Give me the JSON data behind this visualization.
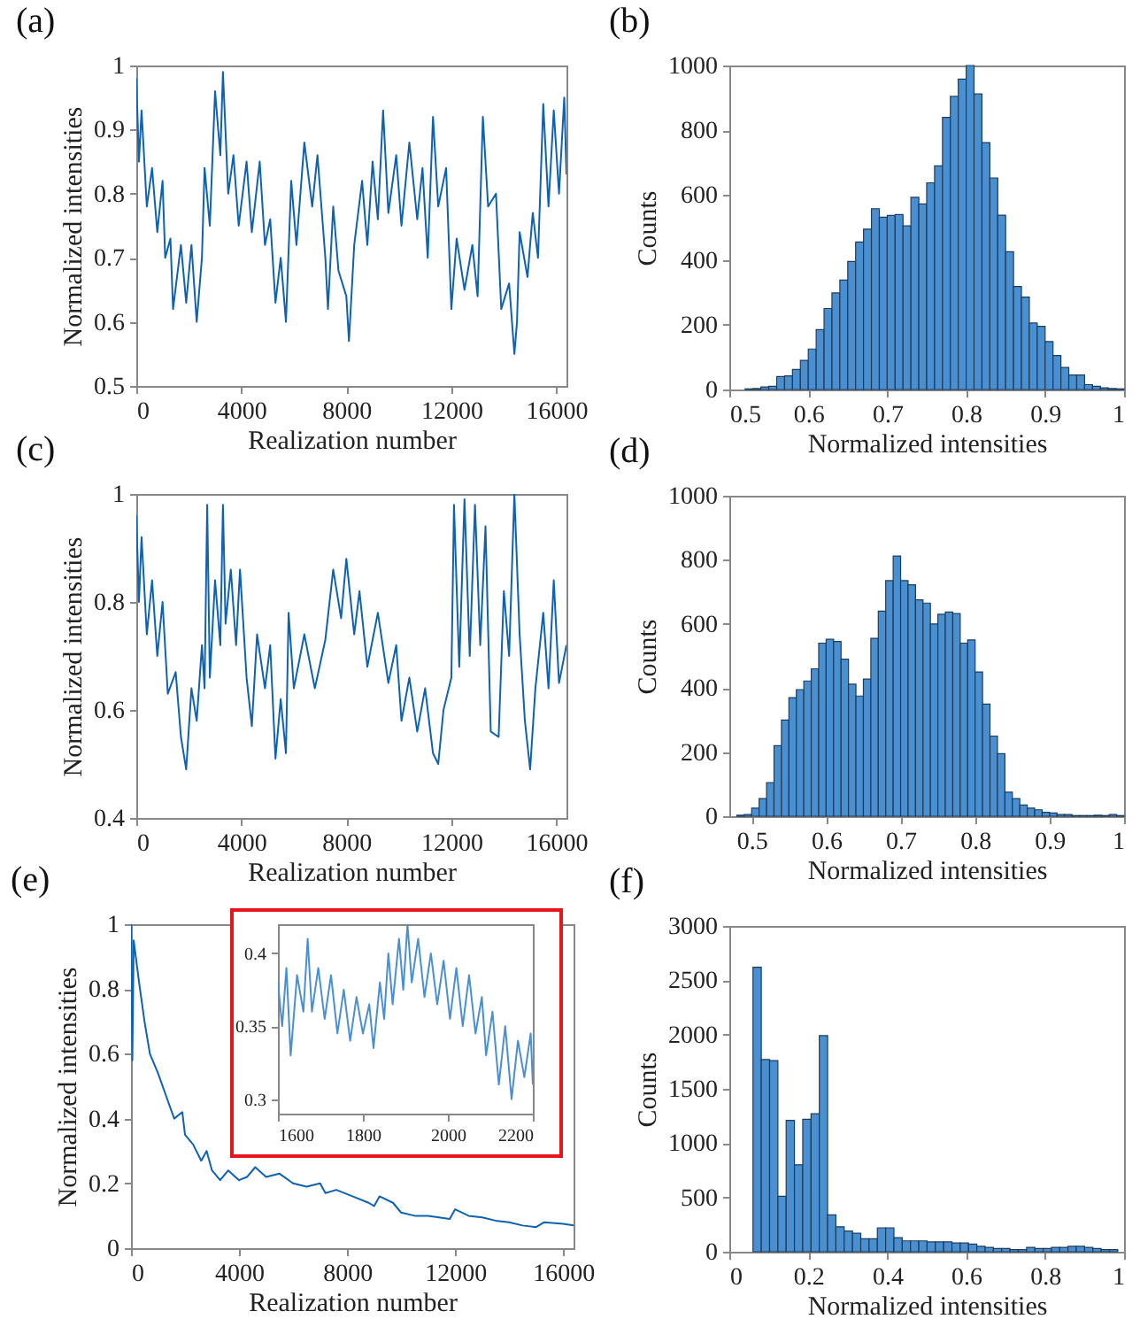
{
  "chart_data": [
    {
      "type": "line",
      "title": "(a)",
      "xlabel": "Realization number",
      "ylabel": "Normalized intensities",
      "color": "#0e62b0",
      "xlim": [
        0,
        16384
      ],
      "xticks": [
        0,
        4000,
        8000,
        12000,
        16000
      ],
      "ylim": [
        0.5,
        1
      ],
      "yticks": [
        0.5,
        0.6,
        0.7,
        0.8,
        0.9,
        1
      ],
      "x": [
        0,
        100,
        200,
        400,
        600,
        800,
        1000,
        1100,
        1300,
        1400,
        1700,
        1900,
        2100,
        2300,
        2500,
        2600,
        2800,
        3000,
        3200,
        3300,
        3500,
        3700,
        3900,
        4200,
        4400,
        4700,
        4900,
        5100,
        5300,
        5500,
        5700,
        5900,
        6100,
        6400,
        6700,
        6900,
        7200,
        7300,
        7500,
        7700,
        8000,
        8100,
        8300,
        8600,
        8800,
        9000,
        9200,
        9400,
        9600,
        9900,
        10100,
        10400,
        10700,
        10900,
        11100,
        11300,
        11500,
        11800,
        12000,
        12200,
        12500,
        12800,
        13000,
        13200,
        13400,
        13700,
        13900,
        14200,
        14400,
        14500,
        14600,
        14900,
        15100,
        15300,
        15500,
        15700,
        15900,
        16100,
        16300,
        16384
      ],
      "values": [
        0.98,
        0.85,
        0.93,
        0.78,
        0.84,
        0.74,
        0.82,
        0.7,
        0.73,
        0.62,
        0.72,
        0.63,
        0.72,
        0.6,
        0.7,
        0.84,
        0.75,
        0.96,
        0.86,
        0.99,
        0.8,
        0.86,
        0.75,
        0.85,
        0.74,
        0.85,
        0.72,
        0.76,
        0.63,
        0.7,
        0.6,
        0.82,
        0.72,
        0.88,
        0.78,
        0.86,
        0.7,
        0.62,
        0.78,
        0.68,
        0.64,
        0.57,
        0.72,
        0.82,
        0.72,
        0.85,
        0.76,
        0.93,
        0.77,
        0.86,
        0.75,
        0.88,
        0.76,
        0.84,
        0.7,
        0.92,
        0.78,
        0.84,
        0.62,
        0.73,
        0.65,
        0.72,
        0.64,
        0.92,
        0.78,
        0.8,
        0.62,
        0.66,
        0.55,
        0.6,
        0.74,
        0.67,
        0.77,
        0.7,
        0.94,
        0.78,
        0.93,
        0.8,
        0.95,
        0.83
      ]
    },
    {
      "type": "histogram",
      "title": "(b)",
      "xlabel": "Normalized intensities",
      "ylabel": "Counts",
      "color": "#4a90d0",
      "xlim": [
        0.5,
        1
      ],
      "xticks": [
        0.5,
        0.6,
        0.7,
        0.8,
        0.9,
        1
      ],
      "ylim": [
        0,
        1000
      ],
      "yticks": [
        0,
        200,
        400,
        600,
        800,
        1000
      ],
      "bins": [
        0.5,
        0.51,
        0.52,
        0.53,
        0.54,
        0.55,
        0.56,
        0.57,
        0.58,
        0.59,
        0.6,
        0.61,
        0.62,
        0.63,
        0.64,
        0.65,
        0.66,
        0.67,
        0.68,
        0.69,
        0.7,
        0.71,
        0.72,
        0.73,
        0.74,
        0.75,
        0.76,
        0.77,
        0.78,
        0.79,
        0.8,
        0.81,
        0.82,
        0.83,
        0.84,
        0.85,
        0.86,
        0.87,
        0.88,
        0.89,
        0.9,
        0.91,
        0.92,
        0.93,
        0.94,
        0.95,
        0.96,
        0.97,
        0.98,
        0.99,
        1
      ],
      "values": [
        null,
        null,
        2,
        3,
        8,
        10,
        40,
        42,
        62,
        90,
        125,
        185,
        250,
        298,
        338,
        395,
        455,
        495,
        558,
        532,
        537,
        540,
        505,
        593,
        573,
        638,
        690,
        840,
        905,
        958,
        1000,
        912,
        762,
        653,
        538,
        425,
        318,
        285,
        205,
        195,
        148,
        105,
        68,
        45,
        45,
        15,
        10,
        5,
        3,
        2
      ]
    },
    {
      "type": "line",
      "title": "(c)",
      "xlabel": "Realization number",
      "ylabel": "Normalized intensities",
      "color": "#0e62b0",
      "xlim": [
        0,
        16384
      ],
      "xticks": [
        0,
        4000,
        8000,
        12000,
        16000
      ],
      "ylim": [
        0.4,
        1
      ],
      "yticks": [
        0.4,
        0.6,
        0.8,
        1
      ],
      "x": [
        0,
        100,
        200,
        400,
        600,
        800,
        1000,
        1200,
        1500,
        1700,
        1900,
        2100,
        2300,
        2500,
        2600,
        2700,
        2800,
        3000,
        3200,
        3300,
        3400,
        3600,
        3800,
        3950,
        4200,
        4400,
        4600,
        4900,
        5100,
        5300,
        5500,
        5700,
        5800,
        6000,
        6400,
        6800,
        7200,
        7500,
        7800,
        8000,
        8300,
        8500,
        8800,
        9200,
        9600,
        9900,
        10100,
        10400,
        10700,
        11000,
        11300,
        11500,
        11700,
        12000,
        12100,
        12300,
        12500,
        12700,
        12900,
        13100,
        13300,
        13500,
        13800,
        14000,
        14200,
        14400,
        14600,
        14800,
        15000,
        15200,
        15500,
        15700,
        15900,
        16100,
        16384
      ],
      "values": [
        0.96,
        0.8,
        0.92,
        0.74,
        0.84,
        0.7,
        0.8,
        0.63,
        0.67,
        0.55,
        0.49,
        0.64,
        0.58,
        0.72,
        0.64,
        0.98,
        0.66,
        0.84,
        0.72,
        0.98,
        0.76,
        0.86,
        0.72,
        0.86,
        0.66,
        0.57,
        0.74,
        0.64,
        0.72,
        0.51,
        0.62,
        0.52,
        0.78,
        0.64,
        0.74,
        0.64,
        0.73,
        0.86,
        0.77,
        0.88,
        0.74,
        0.82,
        0.68,
        0.78,
        0.65,
        0.72,
        0.58,
        0.66,
        0.56,
        0.64,
        0.52,
        0.5,
        0.6,
        0.66,
        0.98,
        0.68,
        0.99,
        0.7,
        0.98,
        0.72,
        0.94,
        0.56,
        0.55,
        0.82,
        0.7,
        1,
        0.74,
        0.58,
        0.49,
        0.64,
        0.78,
        0.64,
        0.84,
        0.65,
        0.72
      ]
    },
    {
      "type": "histogram",
      "title": "(d)",
      "xlabel": "Normalized intensities",
      "ylabel": "Counts",
      "color": "#4a90d0",
      "xlim": [
        0.47,
        1
      ],
      "xticks": [
        0.5,
        0.6,
        0.7,
        0.8,
        0.9,
        1
      ],
      "ylim": [
        0,
        1000
      ],
      "yticks": [
        0,
        200,
        400,
        600,
        800,
        1000
      ],
      "bins": [
        0.48,
        0.49,
        0.5,
        0.51,
        0.52,
        0.53,
        0.54,
        0.55,
        0.56,
        0.57,
        0.58,
        0.59,
        0.6,
        0.61,
        0.62,
        0.63,
        0.64,
        0.65,
        0.66,
        0.67,
        0.68,
        0.69,
        0.7,
        0.71,
        0.72,
        0.73,
        0.74,
        0.75,
        0.76,
        0.77,
        0.78,
        0.79,
        0.8,
        0.81,
        0.82,
        0.83,
        0.84,
        0.85,
        0.86,
        0.87,
        0.88,
        0.89,
        0.9,
        0.91,
        0.92,
        0.93,
        0.94,
        0.95,
        0.96,
        0.97,
        0.98,
        0.99,
        1
      ],
      "values": [
        3,
        5,
        25,
        55,
        105,
        220,
        300,
        370,
        395,
        422,
        460,
        540,
        552,
        545,
        490,
        412,
        375,
        428,
        555,
        640,
        735,
        812,
        735,
        722,
        675,
        665,
        600,
        630,
        637,
        632,
        540,
        550,
        450,
        350,
        250,
        195,
        75,
        55,
        35,
        25,
        20,
        12,
        10,
        5,
        5,
        2,
        2,
        2,
        3,
        2,
        5,
        2
      ]
    },
    {
      "type": "line",
      "title": "(e)",
      "xlabel": "Realization number",
      "ylabel": "Normalized intensities",
      "color": "#0e62b0",
      "xlim": [
        0,
        16384
      ],
      "xticks": [
        0,
        4000,
        8000,
        12000,
        16000
      ],
      "ylim": [
        0,
        1
      ],
      "yticks": [
        0,
        0.2,
        0.4,
        0.6,
        0.8,
        1
      ],
      "x": [
        0,
        50,
        100,
        300,
        500,
        700,
        1000,
        1300,
        1600,
        1900,
        2000,
        2300,
        2600,
        2800,
        3000,
        3300,
        3600,
        4000,
        4300,
        4600,
        5000,
        5500,
        6000,
        6500,
        7000,
        7200,
        7600,
        8200,
        8800,
        9000,
        9200,
        9700,
        10000,
        10500,
        11000,
        11800,
        12000,
        12500,
        13000,
        13500,
        14000,
        14500,
        15000,
        15300,
        16000,
        16384
      ],
      "values": [
        1,
        0.58,
        0.95,
        0.82,
        0.7,
        0.6,
        0.54,
        0.47,
        0.4,
        0.42,
        0.35,
        0.32,
        0.27,
        0.3,
        0.24,
        0.21,
        0.24,
        0.21,
        0.22,
        0.25,
        0.22,
        0.23,
        0.2,
        0.19,
        0.2,
        0.17,
        0.18,
        0.16,
        0.14,
        0.13,
        0.16,
        0.14,
        0.11,
        0.1,
        0.1,
        0.09,
        0.12,
        0.1,
        0.095,
        0.085,
        0.08,
        0.07,
        0.065,
        0.08,
        0.075,
        0.07
      ]
    },
    {
      "type": "line",
      "color": "#4a90d0",
      "xlim": [
        1600,
        2200
      ],
      "xticks": [
        1600,
        1800,
        2000,
        2200
      ],
      "ylim": [
        0.29,
        0.42
      ],
      "yticks": [
        0.3,
        0.35,
        0.4
      ],
      "x": [
        1600,
        1610,
        1620,
        1630,
        1645,
        1660,
        1670,
        1680,
        1695,
        1710,
        1725,
        1740,
        1755,
        1770,
        1785,
        1800,
        1815,
        1825,
        1840,
        1850,
        1860,
        1870,
        1885,
        1895,
        1905,
        1915,
        1930,
        1945,
        1960,
        1975,
        1990,
        2005,
        2020,
        2035,
        2050,
        2065,
        2080,
        2090,
        2105,
        2120,
        2135,
        2150,
        2165,
        2180,
        2195,
        2200
      ],
      "values": [
        0.38,
        0.35,
        0.39,
        0.33,
        0.385,
        0.36,
        0.41,
        0.36,
        0.39,
        0.355,
        0.385,
        0.345,
        0.375,
        0.34,
        0.37,
        0.345,
        0.365,
        0.335,
        0.38,
        0.355,
        0.4,
        0.365,
        0.41,
        0.375,
        0.42,
        0.38,
        0.41,
        0.37,
        0.4,
        0.365,
        0.395,
        0.355,
        0.39,
        0.35,
        0.385,
        0.345,
        0.37,
        0.33,
        0.36,
        0.31,
        0.35,
        0.3,
        0.34,
        0.315,
        0.345,
        0.31
      ]
    },
    {
      "type": "histogram",
      "title": "(f)",
      "xlabel": "Normalized intensities",
      "ylabel": "Counts",
      "color": "#4a90d0",
      "xlim": [
        0,
        1
      ],
      "xticks": [
        0,
        0.2,
        0.4,
        0.6,
        0.8,
        1
      ],
      "ylim": [
        0,
        3000
      ],
      "yticks": [
        0,
        500,
        1000,
        1500,
        2000,
        2500,
        3000
      ],
      "bins": [
        0.06,
        0.081,
        0.102,
        0.123,
        0.144,
        0.165,
        0.186,
        0.207,
        0.228,
        0.249,
        0.27,
        0.291,
        0.312,
        0.333,
        0.354,
        0.375,
        0.396,
        0.417,
        0.438,
        0.459,
        0.48,
        0.501,
        0.522,
        0.543,
        0.564,
        0.585,
        0.606,
        0.627,
        0.648,
        0.669,
        0.69,
        0.711,
        0.732,
        0.753,
        0.774,
        0.795,
        0.816,
        0.837,
        0.858,
        0.879,
        0.9,
        0.921,
        0.942,
        0.963,
        0.984
      ],
      "values": [
        2620,
        1770,
        1760,
        510,
        1210,
        800,
        1220,
        1270,
        1990,
        340,
        230,
        190,
        170,
        120,
        120,
        220,
        220,
        130,
        100,
        100,
        100,
        90,
        90,
        90,
        80,
        80,
        70,
        50,
        40,
        30,
        30,
        20,
        20,
        40,
        30,
        30,
        40,
        40,
        50,
        50,
        40,
        30,
        20,
        20
      ]
    }
  ]
}
